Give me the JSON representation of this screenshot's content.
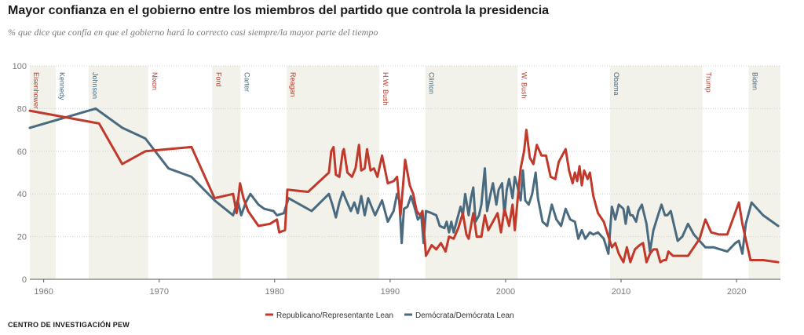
{
  "title": "Mayor confianza en el gobierno entre los miembros del partido que controla la presidencia",
  "subtitle": "% que dice que confía en que el gobierno hará lo correcto casi siempre/la mayor parte del tiempo",
  "source": "CENTRO DE INVESTIGACIÓN PEW",
  "chart_data": {
    "type": "line",
    "xlim": [
      1958.8,
      2023.8
    ],
    "ylim": [
      0,
      100
    ],
    "yticks": [
      0,
      20,
      40,
      60,
      80,
      100
    ],
    "xticks": [
      1960,
      1970,
      1980,
      1990,
      2000,
      2010,
      2020
    ],
    "grid": "horizontal dotted",
    "legend_position": "bottom-center",
    "presidencies": [
      {
        "name": "Eisenhower",
        "start": 1958.8,
        "end": 1961.05,
        "party": "R",
        "shaded": true
      },
      {
        "name": "Kennedy",
        "start": 1961.05,
        "end": 1963.9,
        "party": "D",
        "shaded": false
      },
      {
        "name": "Johnson",
        "start": 1963.9,
        "end": 1969.05,
        "party": "D",
        "shaded": true
      },
      {
        "name": "Nixon",
        "start": 1969.05,
        "end": 1974.6,
        "party": "R",
        "shaded": false
      },
      {
        "name": "Ford",
        "start": 1974.6,
        "end": 1977.05,
        "party": "R",
        "shaded": true
      },
      {
        "name": "Carter",
        "start": 1977.05,
        "end": 1981.05,
        "party": "D",
        "shaded": false
      },
      {
        "name": "Reagan",
        "start": 1981.05,
        "end": 1989.05,
        "party": "R",
        "shaded": true
      },
      {
        "name": "H.W. Bush",
        "start": 1989.05,
        "end": 1993.05,
        "party": "R",
        "shaded": false
      },
      {
        "name": "Clinton",
        "start": 1993.05,
        "end": 2001.05,
        "party": "D",
        "shaded": true
      },
      {
        "name": "W. Bush",
        "start": 2001.05,
        "end": 2009.05,
        "party": "R",
        "shaded": false
      },
      {
        "name": "Obama",
        "start": 2009.05,
        "end": 2017.05,
        "party": "D",
        "shaded": true
      },
      {
        "name": "Trump",
        "start": 2017.05,
        "end": 2021.05,
        "party": "R",
        "shaded": false
      },
      {
        "name": "Biden",
        "start": 2021.05,
        "end": 2023.8,
        "party": "D",
        "shaded": true
      }
    ],
    "series": [
      {
        "name": "Republicano/Representante Lean",
        "color": "#c0392b",
        "points": [
          [
            1958.8,
            79
          ],
          [
            1964.8,
            73
          ],
          [
            1966.8,
            54
          ],
          [
            1968.8,
            60
          ],
          [
            1972.8,
            62
          ],
          [
            1974.8,
            38
          ],
          [
            1976.4,
            40
          ],
          [
            1976.7,
            31
          ],
          [
            1977.0,
            45
          ],
          [
            1977.3,
            38
          ],
          [
            1977.7,
            32
          ],
          [
            1978.6,
            25
          ],
          [
            1979.6,
            26
          ],
          [
            1980.2,
            28
          ],
          [
            1980.4,
            22
          ],
          [
            1980.9,
            23
          ],
          [
            1981.1,
            42
          ],
          [
            1982.9,
            41
          ],
          [
            1984.7,
            50
          ],
          [
            1984.9,
            60
          ],
          [
            1985.1,
            62
          ],
          [
            1985.3,
            49
          ],
          [
            1985.6,
            48
          ],
          [
            1985.9,
            60
          ],
          [
            1986.0,
            61
          ],
          [
            1986.3,
            50
          ],
          [
            1986.7,
            48
          ],
          [
            1987.0,
            52
          ],
          [
            1987.3,
            63
          ],
          [
            1987.5,
            51
          ],
          [
            1987.8,
            52
          ],
          [
            1988.0,
            61
          ],
          [
            1988.3,
            51
          ],
          [
            1988.6,
            52
          ],
          [
            1988.9,
            48
          ],
          [
            1989.3,
            58
          ],
          [
            1989.8,
            45
          ],
          [
            1990.3,
            46
          ],
          [
            1990.6,
            48
          ],
          [
            1990.9,
            30
          ],
          [
            1991.1,
            43
          ],
          [
            1991.3,
            56
          ],
          [
            1991.7,
            44
          ],
          [
            1992.0,
            40
          ],
          [
            1992.3,
            32
          ],
          [
            1992.6,
            30
          ],
          [
            1992.8,
            32
          ],
          [
            1993.1,
            11
          ],
          [
            1993.6,
            16
          ],
          [
            1994.0,
            14
          ],
          [
            1994.4,
            17
          ],
          [
            1994.8,
            13
          ],
          [
            1995.1,
            20
          ],
          [
            1995.5,
            19
          ],
          [
            1995.9,
            24
          ],
          [
            1996.3,
            31
          ],
          [
            1996.6,
            21
          ],
          [
            1996.8,
            19
          ],
          [
            1997.2,
            31
          ],
          [
            1997.5,
            20
          ],
          [
            1997.9,
            20
          ],
          [
            1998.2,
            30
          ],
          [
            1998.5,
            23
          ],
          [
            1998.9,
            27
          ],
          [
            1999.3,
            31
          ],
          [
            1999.6,
            22
          ],
          [
            1999.9,
            33
          ],
          [
            2000.3,
            25
          ],
          [
            2000.6,
            35
          ],
          [
            2000.8,
            23
          ],
          [
            2001.05,
            38
          ],
          [
            2001.3,
            52
          ],
          [
            2001.6,
            60
          ],
          [
            2001.8,
            70
          ],
          [
            2002.1,
            57
          ],
          [
            2002.4,
            54
          ],
          [
            2002.7,
            63
          ],
          [
            2003.1,
            58
          ],
          [
            2003.5,
            58
          ],
          [
            2003.9,
            48
          ],
          [
            2004.3,
            47
          ],
          [
            2004.6,
            55
          ],
          [
            2004.9,
            58
          ],
          [
            2005.2,
            61
          ],
          [
            2005.5,
            51
          ],
          [
            2005.8,
            45
          ],
          [
            2006.0,
            50
          ],
          [
            2006.2,
            46
          ],
          [
            2006.4,
            53
          ],
          [
            2006.6,
            44
          ],
          [
            2006.8,
            51
          ],
          [
            2007.1,
            47
          ],
          [
            2007.3,
            50
          ],
          [
            2007.6,
            39
          ],
          [
            2008.0,
            31
          ],
          [
            2008.5,
            27
          ],
          [
            2008.9,
            20
          ],
          [
            2009.2,
            15
          ],
          [
            2009.5,
            17
          ],
          [
            2009.8,
            12
          ],
          [
            2010.2,
            8
          ],
          [
            2010.5,
            15
          ],
          [
            2010.8,
            8
          ],
          [
            2011.2,
            14
          ],
          [
            2011.6,
            16
          ],
          [
            2011.9,
            17
          ],
          [
            2012.2,
            8
          ],
          [
            2012.5,
            12
          ],
          [
            2012.8,
            14
          ],
          [
            2013.1,
            14
          ],
          [
            2013.4,
            8
          ],
          [
            2013.7,
            9
          ],
          [
            2013.9,
            9
          ],
          [
            2014.1,
            13
          ],
          [
            2014.5,
            11
          ],
          [
            2014.9,
            11
          ],
          [
            2015.4,
            11
          ],
          [
            2015.8,
            11
          ],
          [
            2016.3,
            15
          ],
          [
            2016.8,
            19
          ],
          [
            2017.3,
            28
          ],
          [
            2017.8,
            22
          ],
          [
            2018.5,
            21
          ],
          [
            2019.2,
            21
          ],
          [
            2019.8,
            30
          ],
          [
            2020.2,
            36
          ],
          [
            2020.5,
            26
          ],
          [
            2021.2,
            9
          ],
          [
            2022.3,
            9
          ],
          [
            2023.6,
            8
          ]
        ]
      },
      {
        "name": "Demócrata/Demócrata Lean",
        "color": "#4a6a80",
        "points": [
          [
            1958.8,
            71
          ],
          [
            1964.5,
            80
          ],
          [
            1966.8,
            71
          ],
          [
            1968.8,
            66
          ],
          [
            1970.8,
            52
          ],
          [
            1972.8,
            48
          ],
          [
            1974.8,
            37
          ],
          [
            1976.4,
            30
          ],
          [
            1976.8,
            37
          ],
          [
            1977.1,
            30
          ],
          [
            1977.5,
            36
          ],
          [
            1977.9,
            40
          ],
          [
            1978.6,
            35
          ],
          [
            1979.1,
            33
          ],
          [
            1979.9,
            32
          ],
          [
            1980.2,
            30
          ],
          [
            1980.8,
            31
          ],
          [
            1981.2,
            38
          ],
          [
            1983.2,
            32
          ],
          [
            1984.7,
            40
          ],
          [
            1985.0,
            35
          ],
          [
            1985.3,
            29
          ],
          [
            1985.6,
            36
          ],
          [
            1985.9,
            41
          ],
          [
            1986.2,
            37
          ],
          [
            1986.6,
            32
          ],
          [
            1986.9,
            36
          ],
          [
            1987.2,
            31
          ],
          [
            1987.5,
            39
          ],
          [
            1987.8,
            30
          ],
          [
            1988.1,
            38
          ],
          [
            1988.4,
            34
          ],
          [
            1988.7,
            30
          ],
          [
            1989.3,
            37
          ],
          [
            1989.8,
            27
          ],
          [
            1990.3,
            32
          ],
          [
            1990.6,
            40
          ],
          [
            1990.8,
            37
          ],
          [
            1991.0,
            17
          ],
          [
            1991.2,
            33
          ],
          [
            1991.5,
            34
          ],
          [
            1991.8,
            39
          ],
          [
            1992.1,
            34
          ],
          [
            1992.4,
            28
          ],
          [
            1992.7,
            30
          ],
          [
            1992.9,
            17
          ],
          [
            1993.1,
            32
          ],
          [
            1993.6,
            31
          ],
          [
            1994.0,
            30
          ],
          [
            1994.3,
            25
          ],
          [
            1994.7,
            24
          ],
          [
            1994.9,
            27
          ],
          [
            1995.1,
            22
          ],
          [
            1995.3,
            27
          ],
          [
            1995.5,
            22
          ],
          [
            1995.8,
            28
          ],
          [
            1996.1,
            34
          ],
          [
            1996.3,
            30
          ],
          [
            1996.5,
            40
          ],
          [
            1996.8,
            30
          ],
          [
            1997.0,
            38
          ],
          [
            1997.2,
            43
          ],
          [
            1997.4,
            27
          ],
          [
            1997.7,
            30
          ],
          [
            1997.9,
            35
          ],
          [
            1998.2,
            52
          ],
          [
            1998.4,
            32
          ],
          [
            1998.7,
            40
          ],
          [
            1998.9,
            45
          ],
          [
            1999.2,
            35
          ],
          [
            1999.4,
            42
          ],
          [
            1999.7,
            45
          ],
          [
            1999.9,
            30
          ],
          [
            2000.1,
            42
          ],
          [
            2000.3,
            47
          ],
          [
            2000.6,
            38
          ],
          [
            2000.8,
            48
          ],
          [
            2001.05,
            43
          ],
          [
            2001.3,
            37
          ],
          [
            2001.5,
            51
          ],
          [
            2001.7,
            37
          ],
          [
            2002.0,
            35
          ],
          [
            2002.3,
            40
          ],
          [
            2002.6,
            50
          ],
          [
            2002.8,
            38
          ],
          [
            2003.2,
            27
          ],
          [
            2003.6,
            25
          ],
          [
            2004.0,
            35
          ],
          [
            2004.4,
            28
          ],
          [
            2004.8,
            25
          ],
          [
            2005.2,
            33
          ],
          [
            2005.6,
            28
          ],
          [
            2006.0,
            27
          ],
          [
            2006.3,
            19
          ],
          [
            2006.6,
            23
          ],
          [
            2006.9,
            19
          ],
          [
            2007.3,
            22
          ],
          [
            2007.6,
            21
          ],
          [
            2008.0,
            22
          ],
          [
            2008.5,
            19
          ],
          [
            2008.9,
            12
          ],
          [
            2009.2,
            34
          ],
          [
            2009.5,
            28
          ],
          [
            2009.8,
            35
          ],
          [
            2010.2,
            33
          ],
          [
            2010.4,
            26
          ],
          [
            2010.6,
            34
          ],
          [
            2010.8,
            30
          ],
          [
            2011.0,
            30
          ],
          [
            2011.3,
            27
          ],
          [
            2011.5,
            32
          ],
          [
            2011.8,
            35
          ],
          [
            2012.2,
            26
          ],
          [
            2012.5,
            13
          ],
          [
            2012.8,
            23
          ],
          [
            2013.2,
            30
          ],
          [
            2013.5,
            35
          ],
          [
            2013.8,
            30
          ],
          [
            2014.0,
            30
          ],
          [
            2014.3,
            32
          ],
          [
            2014.6,
            25
          ],
          [
            2014.9,
            18
          ],
          [
            2015.3,
            20
          ],
          [
            2015.8,
            26
          ],
          [
            2016.3,
            21
          ],
          [
            2016.8,
            18
          ],
          [
            2017.3,
            15
          ],
          [
            2018.0,
            15
          ],
          [
            2019.2,
            13
          ],
          [
            2019.9,
            17
          ],
          [
            2020.2,
            18
          ],
          [
            2020.5,
            12
          ],
          [
            2020.8,
            26
          ],
          [
            2021.3,
            36
          ],
          [
            2022.3,
            30
          ],
          [
            2023.6,
            25
          ]
        ]
      }
    ]
  }
}
